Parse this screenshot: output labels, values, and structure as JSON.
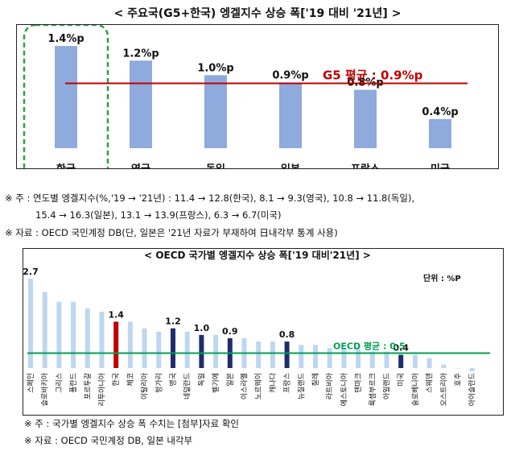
{
  "chart_data": [
    {
      "type": "bar",
      "title": "< 주요국(G5+한국) 엥겔지수 상승 폭['19 대비 '21년] >",
      "categories": [
        "한국",
        "영국",
        "독일",
        "일본",
        "프랑스",
        "미국"
      ],
      "values": [
        1.4,
        1.2,
        1.0,
        0.9,
        0.8,
        0.4
      ],
      "data_labels": [
        "1.4%p",
        "1.2%p",
        "1.0%p",
        "0.9%p",
        "0.8%p",
        "0.4%p"
      ],
      "highlight": "한국",
      "reference_line": {
        "value": 0.9,
        "label": "G5 평균 : 0.9%p"
      },
      "ylim": [
        0,
        1.6
      ],
      "xlabel": "",
      "ylabel": "",
      "grid": false
    },
    {
      "type": "bar",
      "title": "< OECD 국가별 엥겔지수 상승 폭['19 대비'21년] >",
      "unit": "단위 : %P",
      "categories": [
        "스페인",
        "슬로바키아",
        "그리스",
        "폴란드",
        "포르투갈",
        "리투아니아",
        "한국",
        "체코",
        "이탈리아",
        "헝가리",
        "영국",
        "네덜란드",
        "독일",
        "벨기에",
        "일본",
        "이스라엘",
        "노르웨이",
        "캐나다",
        "프랑스",
        "뉴질랜드",
        "칠레",
        "라트비아",
        "에스토니아",
        "덴마크",
        "룩셈부르크",
        "아일랜드",
        "미국",
        "슬로베니아",
        "스웨덴",
        "오스트리아",
        "호주",
        "아이슬란드"
      ],
      "values": [
        2.7,
        2.3,
        2.0,
        2.0,
        1.8,
        1.7,
        1.4,
        1.4,
        1.2,
        1.1,
        1.2,
        1.1,
        1.0,
        1.0,
        0.9,
        0.9,
        0.8,
        0.8,
        0.8,
        0.7,
        0.7,
        0.6,
        0.6,
        0.6,
        0.5,
        0.5,
        0.4,
        0.4,
        0.3,
        0.1,
        0.0,
        -0.1
      ],
      "data_labels": {
        "스페인": "2.7",
        "한국": "1.4",
        "영국": "1.2",
        "독일": "1.0",
        "일본": "0.9",
        "프랑스": "0.8",
        "미국": "0.4"
      },
      "highlight_red": [
        "한국"
      ],
      "highlight_navy": [
        "영국",
        "독일",
        "일본",
        "프랑스",
        "미국"
      ],
      "reference_line": {
        "value": 0.5,
        "label": "OECD 평균 : 0.5"
      },
      "ylim": [
        -0.3,
        2.8
      ],
      "grid": false
    }
  ],
  "colors": {
    "bar": "#8faadc",
    "bar2": "#bdd7ee",
    "red": "#c00000",
    "navy": "#1f2d6e",
    "avg1": "#c00000",
    "avg2": "#00a050",
    "dash": "#2ea043"
  },
  "notes": {
    "n1a": "※ 주 : 연도별 엥겔지수(%,'19 → '21년) : 11.4 → 12.8(한국), 8.1 → 9.3(영국), 10.8 → 11.8(독일),",
    "n1b": "15.4 → 16.3(일본), 13.1 → 13.9(프랑스), 6.3 → 6.7(미국)",
    "n1c": "※ 자료 : OECD 국민계정 DB(단, 일본은 '21년 자료가 부재하여 日내각부 통계 사용)",
    "n2a": "※ 주 : 국가별 엥겔지수 상승 폭 수치는 [첨부]자료 확인",
    "n2b": "※ 자료 : OECD 국민계정 DB, 일본 내각부"
  }
}
